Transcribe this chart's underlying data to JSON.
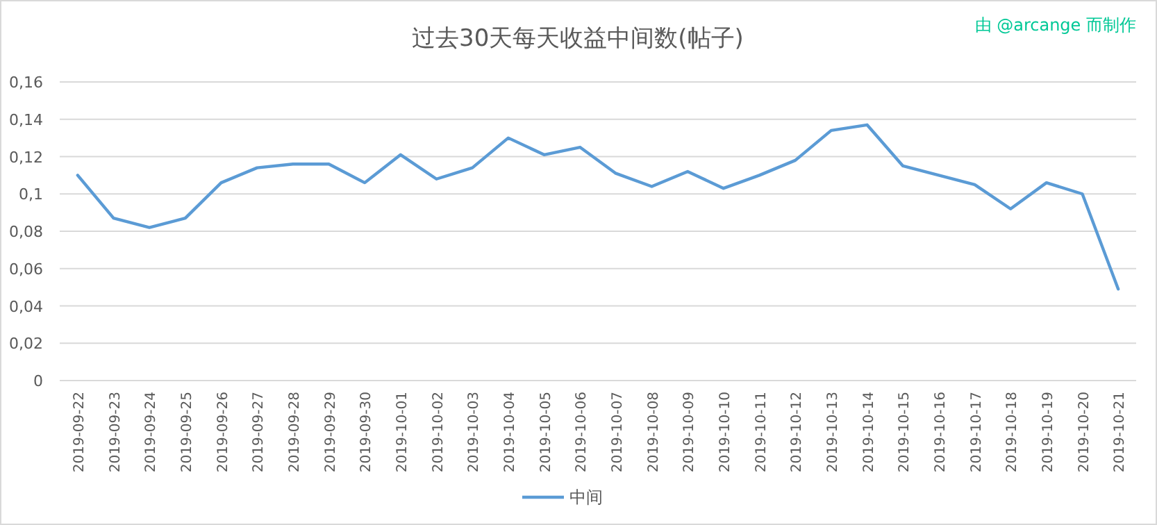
{
  "chart_data": {
    "type": "line",
    "title": "过去30天每天收益中间数(帖子)",
    "annotations": [
      "由 @arcange 而制作"
    ],
    "categories": [
      "2019-09-22",
      "2019-09-23",
      "2019-09-24",
      "2019-09-25",
      "2019-09-26",
      "2019-09-27",
      "2019-09-28",
      "2019-09-29",
      "2019-09-30",
      "2019-10-01",
      "2019-10-02",
      "2019-10-03",
      "2019-10-04",
      "2019-10-05",
      "2019-10-06",
      "2019-10-07",
      "2019-10-08",
      "2019-10-09",
      "2019-10-10",
      "2019-10-11",
      "2019-10-12",
      "2019-10-13",
      "2019-10-14",
      "2019-10-15",
      "2019-10-16",
      "2019-10-17",
      "2019-10-18",
      "2019-10-19",
      "2019-10-20",
      "2019-10-21"
    ],
    "series": [
      {
        "name": "中间",
        "color": "#5b9bd5",
        "values": [
          0.11,
          0.087,
          0.082,
          0.087,
          0.106,
          0.114,
          0.116,
          0.116,
          0.106,
          0.121,
          0.108,
          0.114,
          0.13,
          0.121,
          0.125,
          0.111,
          0.104,
          0.112,
          0.103,
          0.11,
          0.118,
          0.134,
          0.137,
          0.115,
          0.11,
          0.105,
          0.092,
          0.106,
          0.1,
          0.049
        ]
      }
    ],
    "ylim": [
      0,
      0.16
    ],
    "yticks": [
      0,
      {
        "value": 0.02,
        "label": "0,02"
      },
      {
        "value": 0.04,
        "label": "0,04"
      },
      {
        "value": 0.06,
        "label": "0,06"
      },
      {
        "value": 0.08,
        "label": "0,08"
      },
      {
        "value": 0.1,
        "label": "0,1"
      },
      {
        "value": 0.12,
        "label": "0,12"
      },
      {
        "value": 0.14,
        "label": "0,14"
      },
      {
        "value": 0.16,
        "label": "0,16"
      }
    ],
    "grid": "y",
    "legend": "bottom"
  }
}
